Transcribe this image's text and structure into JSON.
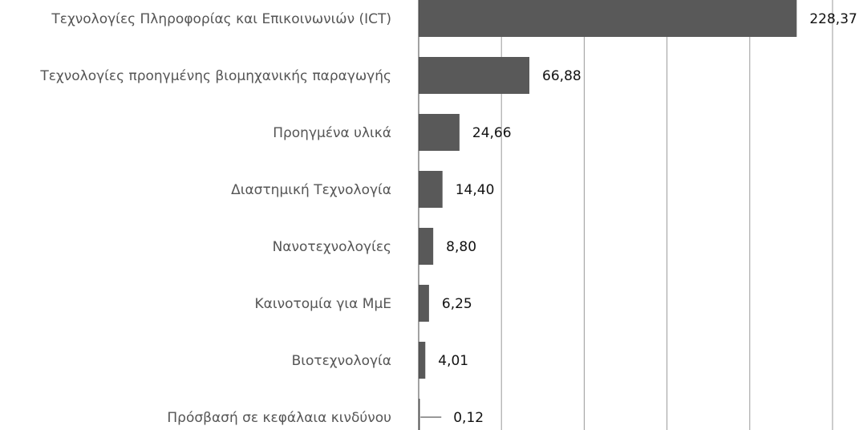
{
  "chart_data": {
    "type": "barh",
    "categories": [
      "Τεχνολογίες Πληροφορίας και Επικοινωνιών (ICT)",
      "Τεχνολογίες προηγμένης βιομηχανικής παραγωγής",
      "Προηγμένα υλικά",
      "Διαστημική Τεχνολογία",
      "Νανοτεχνολογίες",
      "Καινοτομία για ΜμΕ",
      "Βιοτεχνολογία",
      "Πρόσβασή σε κεφάλαια κινδύνου"
    ],
    "values": [
      228.37,
      66.88,
      24.66,
      14.4,
      8.8,
      6.25,
      4.01,
      0.12
    ],
    "value_labels": [
      "228,37",
      "66,88",
      "24,66",
      "14,40",
      "8,80",
      "6,25",
      "4,01",
      "0,12"
    ],
    "color": "#595959",
    "xlim": [
      0,
      250
    ],
    "xticks": [
      50,
      100,
      150,
      200,
      250
    ],
    "grid": true
  }
}
